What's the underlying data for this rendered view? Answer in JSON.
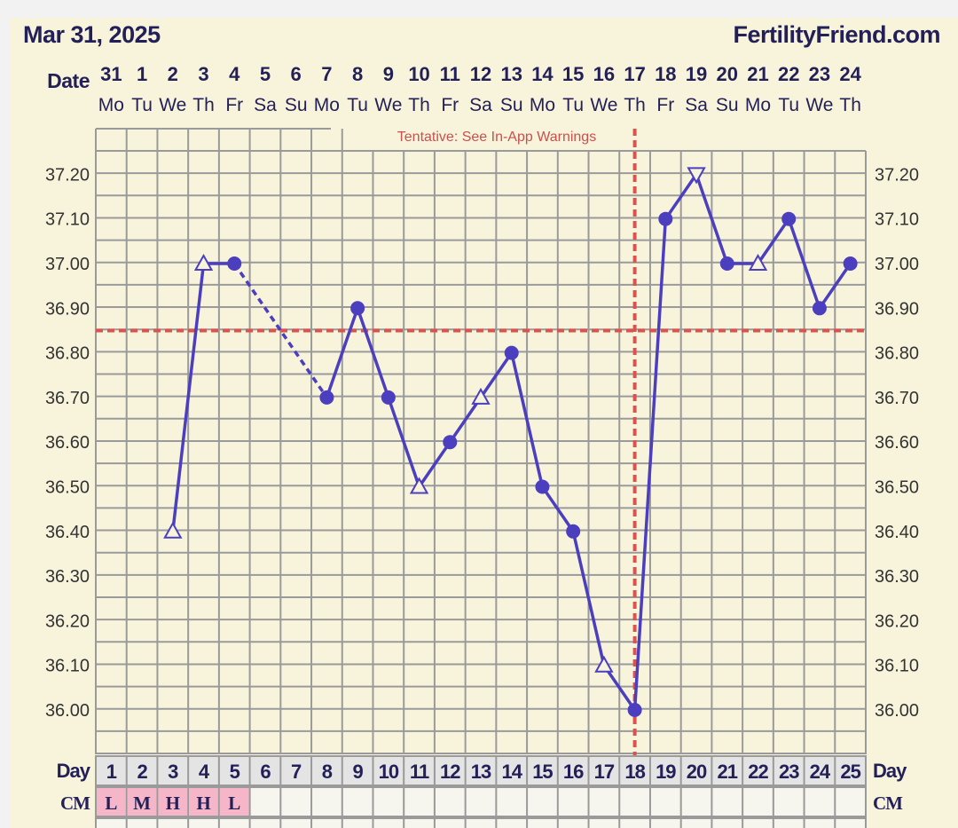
{
  "header": {
    "date": "Mar 31, 2025",
    "brand": "FertilityFriend.com"
  },
  "labels": {
    "date": "Date",
    "day": "Day",
    "cm": "CM",
    "tentative": "Tentative: See In-App Warnings"
  },
  "colors": {
    "line": "#4b3fc0",
    "coverline": "#d9534f",
    "grid": "#9a9a9a",
    "cm_fill": "#f4b6c8",
    "text": "#231f57"
  },
  "chart_data": {
    "type": "line",
    "title": "",
    "ylim": [
      35.9,
      37.3
    ],
    "y_ticks": [
      "37.20",
      "37.10",
      "37.00",
      "36.90",
      "36.80",
      "36.70",
      "36.60",
      "36.50",
      "36.40",
      "36.30",
      "36.20",
      "36.10",
      "36.00"
    ],
    "dates": [
      "31",
      "1",
      "2",
      "3",
      "4",
      "5",
      "6",
      "7",
      "8",
      "9",
      "10",
      "11",
      "12",
      "13",
      "14",
      "15",
      "16",
      "17",
      "18",
      "19",
      "20",
      "21",
      "22",
      "23",
      "24"
    ],
    "weekdays": [
      "Mo",
      "Tu",
      "We",
      "Th",
      "Fr",
      "Sa",
      "Su",
      "Mo",
      "Tu",
      "We",
      "Th",
      "Fr",
      "Sa",
      "Su",
      "Mo",
      "Tu",
      "We",
      "Th",
      "Fr",
      "Sa",
      "Su",
      "Mo",
      "Tu",
      "We",
      "Th"
    ],
    "days": [
      1,
      2,
      3,
      4,
      5,
      6,
      7,
      8,
      9,
      10,
      11,
      12,
      13,
      14,
      15,
      16,
      17,
      18,
      19,
      20,
      21,
      22,
      23,
      24,
      25
    ],
    "cm": [
      "L",
      "M",
      "H",
      "H",
      "L",
      "",
      "",
      "",
      "",
      "",
      "",
      "",
      "",
      "",
      "",
      "",
      "",
      "",
      "",
      "",
      "",
      "",
      "",
      "",
      ""
    ],
    "points": [
      {
        "day": 3,
        "temp": 36.4,
        "marker": "triangle-up"
      },
      {
        "day": 4,
        "temp": 37.0,
        "marker": "triangle-up"
      },
      {
        "day": 5,
        "temp": 37.0,
        "marker": "circle"
      },
      {
        "day": 8,
        "temp": 36.7,
        "marker": "circle",
        "dashed_from_prev": true
      },
      {
        "day": 9,
        "temp": 36.9,
        "marker": "circle"
      },
      {
        "day": 10,
        "temp": 36.7,
        "marker": "circle"
      },
      {
        "day": 11,
        "temp": 36.5,
        "marker": "triangle-up"
      },
      {
        "day": 12,
        "temp": 36.6,
        "marker": "circle"
      },
      {
        "day": 13,
        "temp": 36.7,
        "marker": "triangle-up"
      },
      {
        "day": 14,
        "temp": 36.8,
        "marker": "circle"
      },
      {
        "day": 15,
        "temp": 36.5,
        "marker": "circle"
      },
      {
        "day": 16,
        "temp": 36.4,
        "marker": "circle"
      },
      {
        "day": 17,
        "temp": 36.1,
        "marker": "triangle-up"
      },
      {
        "day": 18,
        "temp": 36.0,
        "marker": "circle"
      },
      {
        "day": 19,
        "temp": 37.1,
        "marker": "circle"
      },
      {
        "day": 20,
        "temp": 37.2,
        "marker": "triangle-down"
      },
      {
        "day": 21,
        "temp": 37.0,
        "marker": "circle"
      },
      {
        "day": 22,
        "temp": 37.0,
        "marker": "triangle-up"
      },
      {
        "day": 23,
        "temp": 37.1,
        "marker": "circle"
      },
      {
        "day": 24,
        "temp": 36.9,
        "marker": "circle"
      },
      {
        "day": 25,
        "temp": 37.0,
        "marker": "circle"
      }
    ],
    "coverline": 36.85,
    "ovulation_day": 18
  }
}
